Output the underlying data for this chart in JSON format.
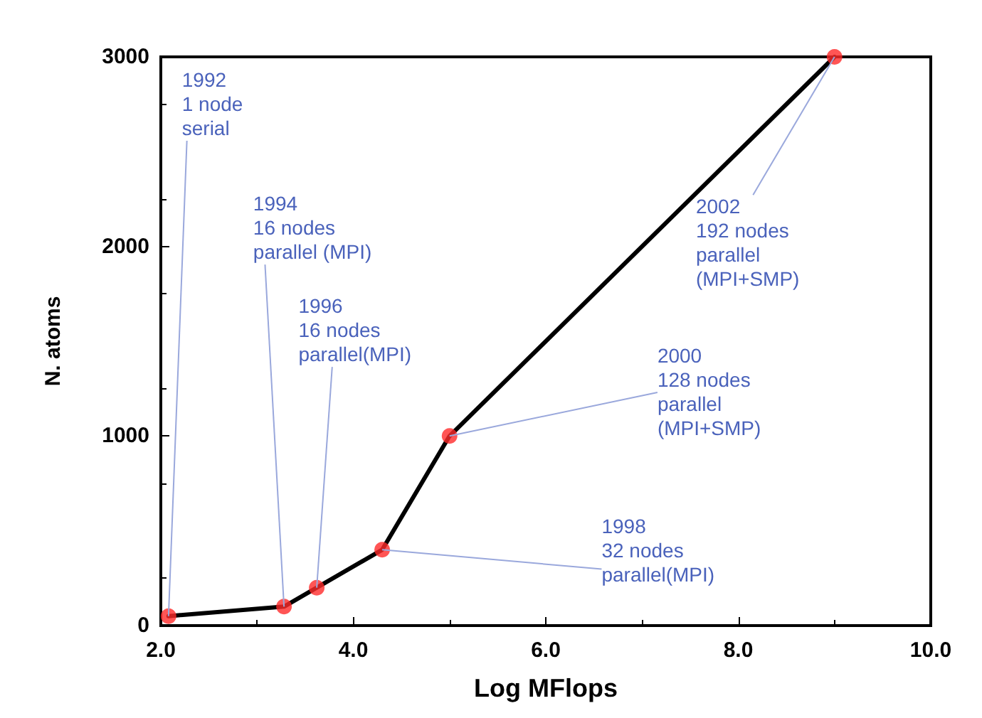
{
  "chart_data": {
    "type": "line",
    "xlabel": "Log MFlops",
    "ylabel": "N. atoms",
    "x": [
      2.08,
      3.28,
      3.62,
      4.3,
      5.0,
      9.0
    ],
    "series": [
      {
        "type": "line",
        "color": "#000000",
        "marker": "none",
        "line_style": "solid",
        "values": [
          50,
          100,
          200,
          400,
          1000,
          3000
        ]
      },
      {
        "type": "scatter",
        "color": "#ff2a2a",
        "marker": "circle",
        "values": [
          50,
          100,
          200,
          400,
          1000,
          3000
        ]
      }
    ],
    "xlim": [
      2.0,
      10.0
    ],
    "xticks": [
      {
        "value": 2,
        "label": "2.0"
      },
      {
        "value": 4,
        "label": "4.0"
      },
      {
        "value": 6,
        "label": "6.0"
      },
      {
        "value": 8,
        "label": "8.0"
      },
      {
        "value": 10,
        "label": "10.0"
      }
    ],
    "ylim": [
      0,
      3000
    ],
    "yticks": [
      0,
      1000,
      2000,
      3000
    ],
    "grid": false,
    "annotations": [
      {
        "text": "1992\n1 node\nserial",
        "x": 2.08,
        "y": 50
      },
      {
        "text": "1994\n16 nodes\nparallel (MPI)",
        "x": 3.28,
        "y": 100
      },
      {
        "text": "1996\n16 nodes\nparallel(MPI)",
        "x": 3.62,
        "y": 200
      },
      {
        "text": "1998\n32 nodes\nparallel(MPI)",
        "x": 4.3,
        "y": 400
      },
      {
        "text": "2000\n128 nodes\nparallel\n(MPI+SMP)",
        "x": 5.0,
        "y": 1000
      },
      {
        "text": "2002\n192 nodes\nparallel\n(MPI+SMP)",
        "x": 9.0,
        "y": 3000
      }
    ]
  }
}
